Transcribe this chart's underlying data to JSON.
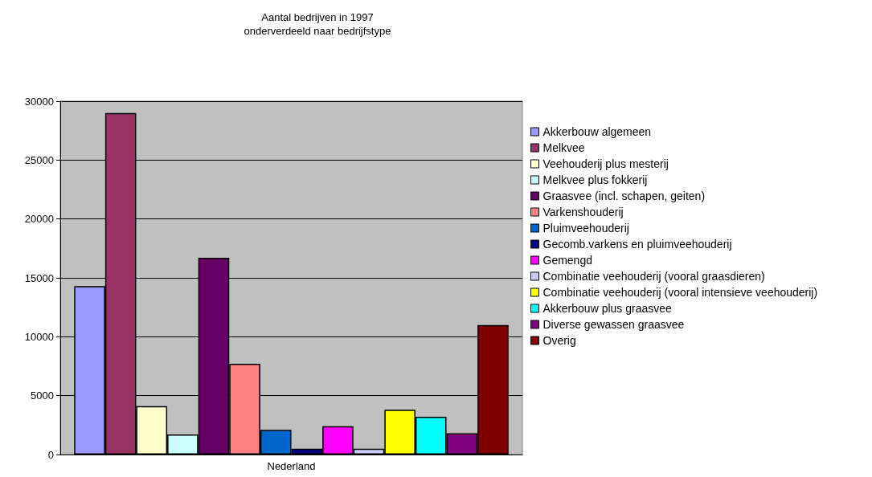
{
  "chart_data": {
    "type": "bar",
    "title": "Aantal bedrijven in 1997\nonderverdeeld naar bedrijfstype",
    "categories": [
      "Nederland"
    ],
    "series": [
      {
        "name": "Akkerbouw algemeen",
        "color": "#9999ff",
        "values": [
          14300
        ]
      },
      {
        "name": "Melkvee",
        "color": "#993366",
        "values": [
          29000
        ]
      },
      {
        "name": "Veehouderij plus mesterij",
        "color": "#ffffcc",
        "values": [
          4100
        ]
      },
      {
        "name": "Melkvee plus fokkerij",
        "color": "#ccffff",
        "values": [
          1700
        ]
      },
      {
        "name": "Graasvee (incl. schapen, geiten)",
        "color": "#660066",
        "values": [
          16700
        ]
      },
      {
        "name": "Varkenshouderij",
        "color": "#ff8080",
        "values": [
          7700
        ]
      },
      {
        "name": "Pluimveehouderij",
        "color": "#0066cc",
        "values": [
          2100
        ]
      },
      {
        "name": "Gecomb.varkens en pluimveehouderij",
        "color": "#000080",
        "values": [
          500
        ]
      },
      {
        "name": "Gemengd",
        "color": "#ff00ff",
        "values": [
          2400
        ]
      },
      {
        "name": "Combinatie veehouderij (vooral graasdieren)",
        "color": "#ccccff",
        "values": [
          500
        ]
      },
      {
        "name": "Combinatie veehouderij (vooral intensieve veehouderij)",
        "color": "#ffff00",
        "values": [
          3800
        ]
      },
      {
        "name": "Akkerbouw plus graasvee",
        "color": "#00ffff",
        "values": [
          3200
        ]
      },
      {
        "name": "Diverse gewassen graasvee",
        "color": "#800080",
        "values": [
          1800
        ]
      },
      {
        "name": "Overig",
        "color": "#800000",
        "values": [
          11000
        ]
      }
    ],
    "ylim": [
      0,
      30000
    ],
    "yticks": [
      0,
      5000,
      10000,
      15000,
      20000,
      25000,
      30000
    ],
    "grid": "y",
    "legend": "right"
  }
}
